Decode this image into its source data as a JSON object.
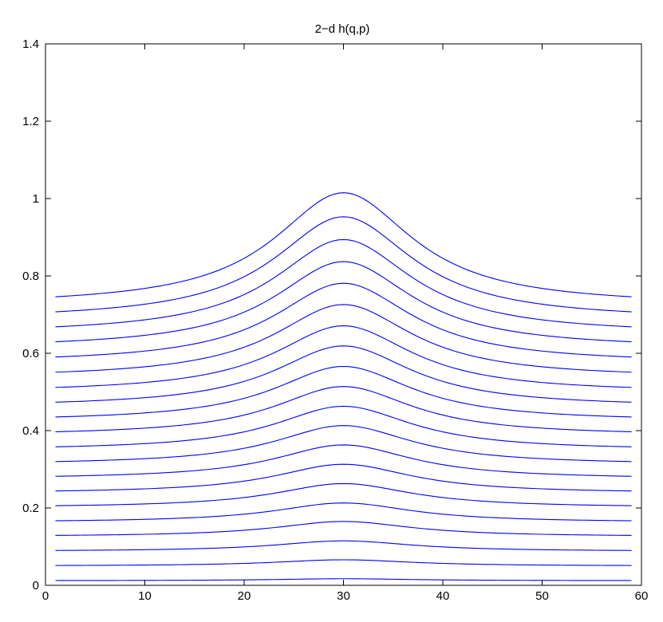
{
  "chart_data": {
    "type": "line",
    "title": "2−d h(q,p)",
    "xlabel": "",
    "ylabel": "",
    "xlim": [
      0,
      60
    ],
    "ylim": [
      0,
      1.4
    ],
    "xticks": [
      "0",
      "10",
      "20",
      "30",
      "40",
      "50",
      "60"
    ],
    "yticks": [
      "0",
      "0.2",
      "0.4",
      "0.6",
      "0.8",
      "1",
      "1.2",
      "1.4"
    ],
    "grid": false,
    "line_color": "#0000ff",
    "x": [
      1,
      59
    ],
    "peak_x": 30,
    "series": [
      {
        "baseline": 0.012,
        "peak": 0.017
      },
      {
        "baseline": 0.05,
        "peak": 0.066
      },
      {
        "baseline": 0.088,
        "peak": 0.115
      },
      {
        "baseline": 0.126,
        "peak": 0.165
      },
      {
        "baseline": 0.163,
        "peak": 0.213
      },
      {
        "baseline": 0.201,
        "peak": 0.263
      },
      {
        "baseline": 0.238,
        "peak": 0.313
      },
      {
        "baseline": 0.275,
        "peak": 0.363
      },
      {
        "baseline": 0.312,
        "peak": 0.413
      },
      {
        "baseline": 0.349,
        "peak": 0.463
      },
      {
        "baseline": 0.387,
        "peak": 0.514
      },
      {
        "baseline": 0.424,
        "peak": 0.566
      },
      {
        "baseline": 0.461,
        "peak": 0.619
      },
      {
        "baseline": 0.498,
        "peak": 0.671
      },
      {
        "baseline": 0.536,
        "peak": 0.726
      },
      {
        "baseline": 0.574,
        "peak": 0.781
      },
      {
        "baseline": 0.612,
        "peak": 0.837
      },
      {
        "baseline": 0.649,
        "peak": 0.894
      },
      {
        "baseline": 0.686,
        "peak": 0.953
      },
      {
        "baseline": 0.723,
        "peak": 1.015
      }
    ]
  }
}
